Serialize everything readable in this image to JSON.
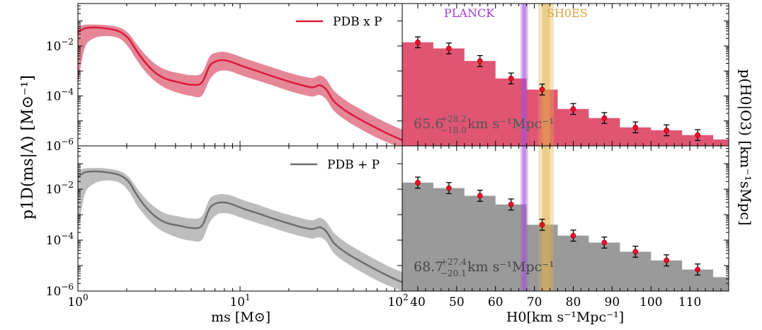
{
  "figure": {
    "ylabel_left": "p1D(ms|Λ) [M⊙⁻¹]",
    "ylabel_right": "p(H0|O3) [km⁻¹sMpc]",
    "xlabel_left": "ms [M⊙]",
    "xlabel_right": "H0[km s⁻¹Mpc⁻¹]"
  },
  "chart_data": [
    {
      "id": "mass-top",
      "type": "area",
      "title": "",
      "legend": "PDB x P",
      "legend_position": "top-right",
      "color": "#d81b3e",
      "xscale": "log",
      "yscale": "log",
      "xlim": [
        1,
        100
      ],
      "ylim": [
        1e-06,
        0.5
      ],
      "x_ticks": [
        "10^0",
        "10^1",
        "10^2"
      ],
      "y_ticks": [
        "10^-2",
        "10^-4",
        "10^-6"
      ],
      "x": [
        1.0,
        1.1,
        1.25,
        1.5,
        1.8,
        2.05,
        2.3,
        2.6,
        3.0,
        3.5,
        4.2,
        5.0,
        5.8,
        6.5,
        7.2,
        8.0,
        9.0,
        10.5,
        13,
        16,
        20,
        24,
        28,
        31,
        34,
        38,
        45,
        55,
        70,
        85,
        100
      ],
      "median": [
        0.035,
        0.05,
        0.055,
        0.05,
        0.038,
        0.02,
        0.0065,
        0.0022,
        0.00085,
        0.00048,
        0.00035,
        0.00028,
        0.00034,
        0.0016,
        0.0025,
        0.0027,
        0.0022,
        0.0015,
        0.00095,
        0.0006,
        0.00038,
        0.00027,
        0.00022,
        0.00027,
        0.00018,
        6e-05,
        2.5e-05,
        1.15e-05,
        5e-06,
        2.7e-06,
        1.7e-06
      ],
      "lower": [
        0.0003,
        0.008,
        0.02,
        0.025,
        0.02,
        0.009,
        0.0028,
        0.00095,
        0.00038,
        0.0002,
        0.00013,
        0.0001,
        0.0001,
        0.00045,
        0.0009,
        0.00105,
        0.0009,
        0.00062,
        0.0004,
        0.00026,
        0.00016,
        0.000115,
        9.5e-05,
        0.00011,
        7.2e-05,
        2.5e-05,
        1.05e-05,
        4.8e-06,
        2.1e-06,
        1.2e-06,
        8e-07
      ],
      "upper": [
        0.06,
        0.07,
        0.072,
        0.068,
        0.055,
        0.032,
        0.012,
        0.0045,
        0.0019,
        0.0011,
        0.00082,
        0.00068,
        0.00082,
        0.0038,
        0.0055,
        0.0058,
        0.0048,
        0.0033,
        0.0021,
        0.00135,
        0.00085,
        0.00062,
        0.00052,
        0.00065,
        0.00046,
        0.00016,
        6.5e-05,
        3e-05,
        1.3e-05,
        7e-06,
        4.5e-06
      ]
    },
    {
      "id": "mass-bottom",
      "type": "area",
      "legend": "PDB + P",
      "legend_position": "top-right",
      "color": "#6e6e6e",
      "xscale": "log",
      "yscale": "log",
      "xlim": [
        1,
        100
      ],
      "ylim": [
        1e-06,
        0.5
      ],
      "x_ticks": [
        "10^0",
        "10^1",
        "10^2"
      ],
      "y_ticks": [
        "10^-2",
        "10^-4",
        "10^-6"
      ],
      "x": [
        1.0,
        1.1,
        1.25,
        1.5,
        1.8,
        2.05,
        2.3,
        2.6,
        3.0,
        3.5,
        4.2,
        5.0,
        5.8,
        6.5,
        7.2,
        8.0,
        9.0,
        10.5,
        13,
        16,
        20,
        24,
        28,
        31,
        34,
        38,
        45,
        55,
        70,
        85,
        100
      ],
      "median": [
        0.03,
        0.045,
        0.05,
        0.046,
        0.036,
        0.02,
        0.0062,
        0.0021,
        0.00085,
        0.00048,
        0.00037,
        0.0003,
        0.00036,
        0.0018,
        0.0028,
        0.003,
        0.0025,
        0.0017,
        0.0011,
        0.0007,
        0.00045,
        0.00032,
        0.00027,
        0.00032,
        0.00022,
        7.5e-05,
        3.2e-05,
        1.5e-05,
        6.5e-06,
        3.5e-06,
        2.2e-06
      ],
      "lower": [
        0.0002,
        0.006,
        0.016,
        0.022,
        0.018,
        0.0085,
        0.0025,
        0.0009,
        0.00035,
        0.00019,
        0.00012,
        9.5e-05,
        0.0001,
        0.0005,
        0.001,
        0.00115,
        0.001,
        0.0007,
        0.00045,
        0.0003,
        0.00019,
        0.00014,
        0.000115,
        0.00013,
        8.7e-05,
        3e-05,
        1.3e-05,
        6e-06,
        2.6e-06,
        1.5e-06,
        1e-06
      ],
      "upper": [
        0.055,
        0.065,
        0.068,
        0.065,
        0.052,
        0.031,
        0.0115,
        0.0044,
        0.0019,
        0.0011,
        0.00085,
        0.0007,
        0.00085,
        0.0042,
        0.006,
        0.0064,
        0.0054,
        0.0037,
        0.0024,
        0.0015,
        0.00098,
        0.00072,
        0.0006,
        0.00075,
        0.00053,
        0.00019,
        8e-05,
        3.7e-05,
        1.6e-05,
        8.5e-06,
        5.5e-06
      ]
    },
    {
      "id": "h0-top",
      "type": "bar",
      "color": "#e05572",
      "yscale": "log",
      "xlim": [
        36,
        120
      ],
      "ylim": [
        1e-06,
        0.5
      ],
      "x_ticks": [
        "40",
        "50",
        "60",
        "70",
        "80",
        "90",
        "100",
        "110"
      ],
      "bin_edges": [
        36,
        44,
        52,
        60,
        68,
        76,
        84,
        92,
        100,
        108,
        116,
        120
      ],
      "bin_values": [
        0.014,
        0.008,
        0.0025,
        0.0005,
        0.00018,
        3e-05,
        1.3e-05,
        5.5e-06,
        4.2e-06,
        2.7e-06,
        1.8e-06
      ],
      "points_x": [
        40,
        48,
        56,
        64,
        72,
        80,
        88,
        96,
        104,
        112
      ],
      "points_y": [
        0.014,
        0.008,
        0.0025,
        0.0005,
        0.00018,
        3e-05,
        1.3e-05,
        5.5e-06,
        4.2e-06,
        2.7e-06
      ],
      "error_factor": 1.65,
      "annotation": "65.6 +28.2/−18.0 km s⁻¹Mpc⁻¹",
      "annotation_center": "65.6",
      "annotation_plus": "+28.2",
      "annotation_minus": "−18.0",
      "annotation_unit": "km s⁻¹Mpc⁻¹",
      "bands": [
        {
          "label": "Planck",
          "center": 67.4,
          "width_1s": 0.5,
          "width_2s": 1.0,
          "color": "#a24fd6"
        },
        {
          "label": "SH0ES",
          "center": 73.0,
          "width_1s": 1.0,
          "width_2s": 2.0,
          "color": "#e3b04b"
        }
      ]
    },
    {
      "id": "h0-bottom",
      "type": "bar",
      "color": "#9a9a9a",
      "yscale": "log",
      "xlim": [
        36,
        120
      ],
      "ylim": [
        1e-06,
        0.5
      ],
      "x_ticks": [
        "40",
        "50",
        "60",
        "70",
        "80",
        "90",
        "100",
        "110"
      ],
      "bin_edges": [
        36,
        44,
        52,
        60,
        68,
        76,
        84,
        92,
        100,
        108,
        116,
        120
      ],
      "bin_values": [
        0.018,
        0.011,
        0.0055,
        0.0025,
        0.0004,
        0.00015,
        8e-05,
        3.5e-05,
        1.6e-05,
        7e-06,
        3.5e-06
      ],
      "points_x": [
        40,
        48,
        56,
        64,
        72,
        80,
        88,
        96,
        104,
        112
      ],
      "points_y": [
        0.018,
        0.011,
        0.0055,
        0.0025,
        0.0004,
        0.00015,
        8e-05,
        3.5e-05,
        1.6e-05,
        7e-06
      ],
      "error_factor": 1.65,
      "annotation": "68.7 +27.4/−20.1 km s⁻¹Mpc⁻¹",
      "annotation_center": "68.7",
      "annotation_plus": "+27.4",
      "annotation_minus": "−20.1",
      "annotation_unit": "km s⁻¹Mpc⁻¹",
      "bands": [
        {
          "label": "Planck",
          "center": 67.4,
          "width_1s": 0.5,
          "width_2s": 1.0,
          "color": "#a24fd6"
        },
        {
          "label": "SH0ES",
          "center": 73.0,
          "width_1s": 1.0,
          "width_2s": 2.0,
          "color": "#e3b04b"
        }
      ]
    }
  ],
  "labels": {
    "planck": "PLANCK",
    "shoes": "SH0ES"
  }
}
